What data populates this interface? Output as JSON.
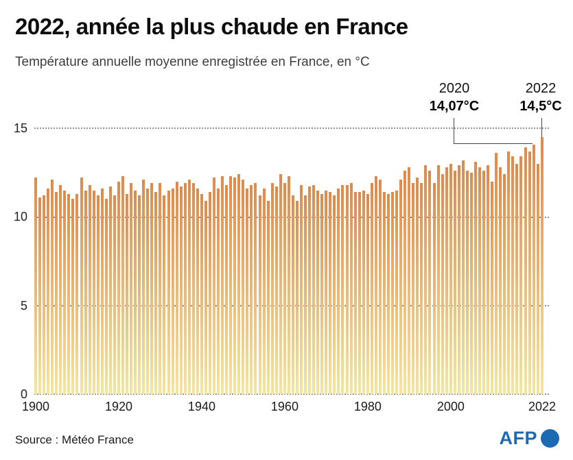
{
  "header": {
    "title": "2022, année la plus chaude en France",
    "subtitle": "Température annuelle moyenne enregistrée en France, en °C"
  },
  "footer": {
    "source": "Source : Météo France",
    "brand": "AFP"
  },
  "colors": {
    "bar_top": "#dd8a4c",
    "bar_bottom": "#f3e6a0",
    "grid": "#8f8f8f",
    "afp_blue": "#1c6ab3"
  },
  "chart_data": {
    "type": "bar",
    "title": "2022, année la plus chaude en France",
    "subtitle": "Température annuelle moyenne enregistrée en France, en °C",
    "xlabel": "",
    "ylabel": "°C",
    "ylim": [
      0,
      15
    ],
    "y_ticks": [
      "15",
      "10",
      "5",
      "0"
    ],
    "y_tick_values": [
      15,
      10,
      5,
      0
    ],
    "x_ticks": [
      1900,
      1920,
      1940,
      1960,
      1980,
      2000,
      2022
    ],
    "x_start": 1900,
    "x_end": 2022,
    "grid": "dotted horizontal",
    "legend": "none",
    "values": [
      12.2,
      11.1,
      11.2,
      11.6,
      12.1,
      11.4,
      11.8,
      11.5,
      11.3,
      11.0,
      11.3,
      12.2,
      11.5,
      11.8,
      11.5,
      11.2,
      11.6,
      11.0,
      11.7,
      11.2,
      12.0,
      12.3,
      11.3,
      11.9,
      11.5,
      11.2,
      12.1,
      11.6,
      11.9,
      11.4,
      11.9,
      11.2,
      11.5,
      11.6,
      12.0,
      11.7,
      11.9,
      12.1,
      11.9,
      11.6,
      11.3,
      10.9,
      11.4,
      12.2,
      11.6,
      12.3,
      11.8,
      12.3,
      12.2,
      12.4,
      12.1,
      11.6,
      11.8,
      11.9,
      11.2,
      11.6,
      10.9,
      11.9,
      11.7,
      12.4,
      11.9,
      12.3,
      11.2,
      10.9,
      11.8,
      11.2,
      11.7,
      11.8,
      11.5,
      11.3,
      11.5,
      11.4,
      11.2,
      11.6,
      11.8,
      11.8,
      11.9,
      11.4,
      11.4,
      11.5,
      11.3,
      11.9,
      12.3,
      12.1,
      11.4,
      11.3,
      11.4,
      11.5,
      12.1,
      12.6,
      12.8,
      11.9,
      12.2,
      11.9,
      12.9,
      12.6,
      11.9,
      12.9,
      12.4,
      12.8,
      13.0,
      12.6,
      12.9,
      13.2,
      12.6,
      12.5,
      13.1,
      12.8,
      12.6,
      12.9,
      12.0,
      13.6,
      12.8,
      12.4,
      13.7,
      13.4,
      13.0,
      13.4,
      13.9,
      13.7,
      14.07,
      13.0,
      14.5
    ],
    "annotations": [
      {
        "x": 2020,
        "label": "2020",
        "value_label": "14,07°C",
        "value": 14.07
      },
      {
        "x": 2022,
        "label": "2022",
        "value_label": "14,5°C",
        "value": 14.5
      }
    ]
  }
}
